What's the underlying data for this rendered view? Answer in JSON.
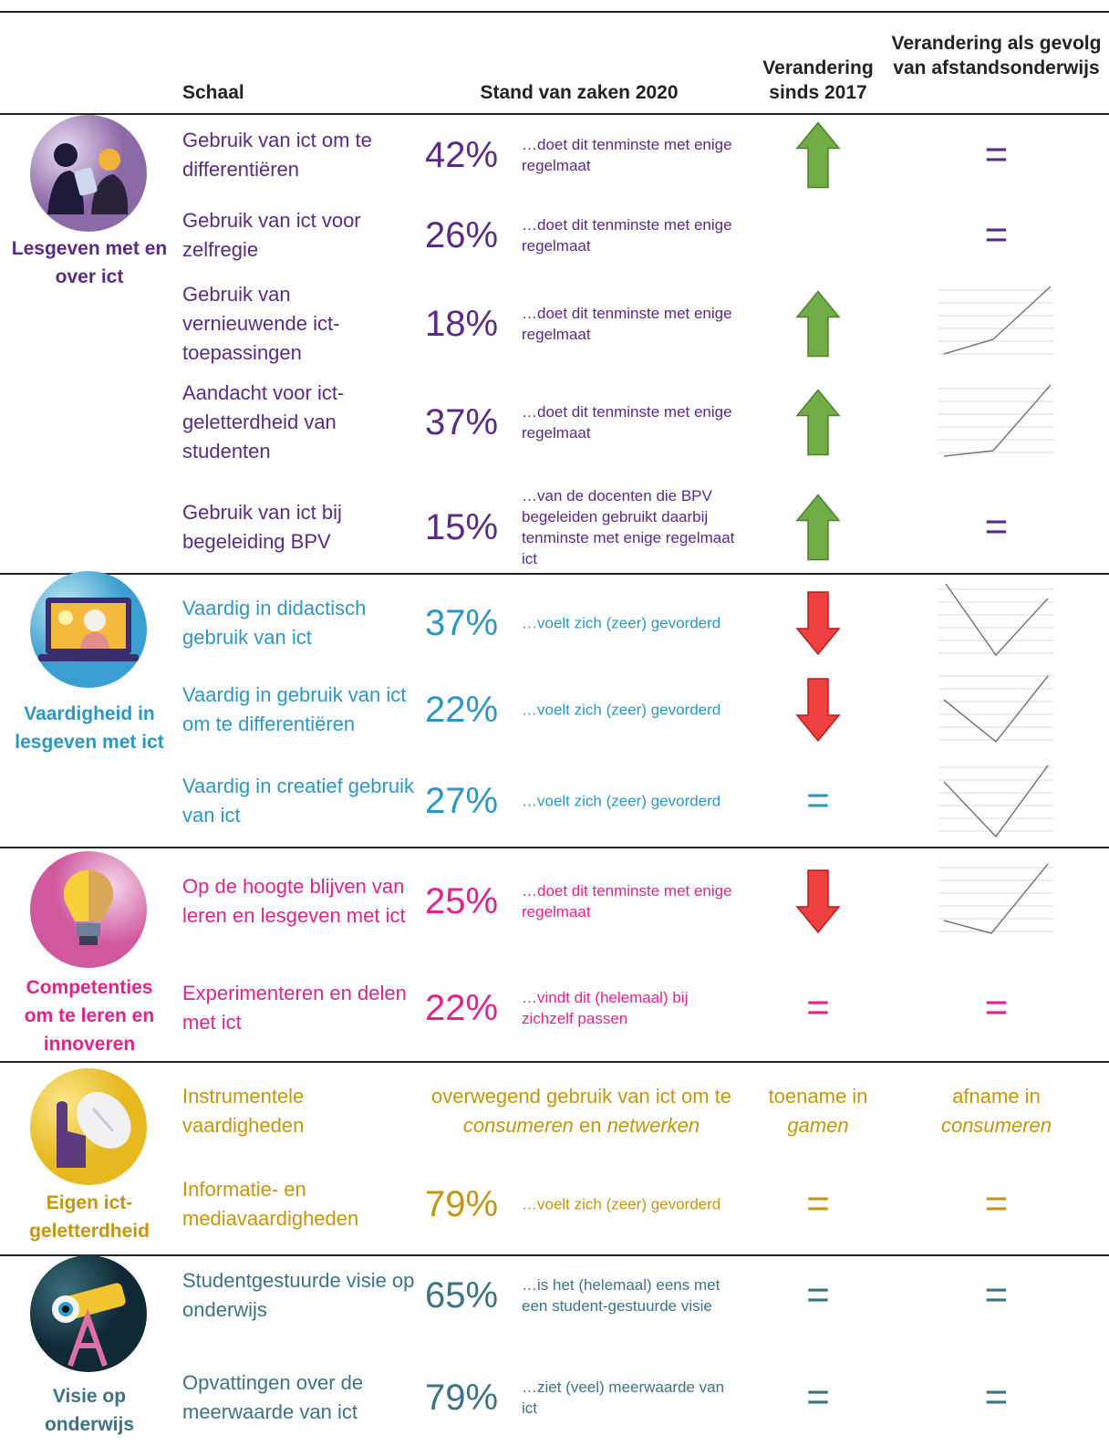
{
  "header": {
    "scale": "Schaal",
    "status": "Stand van zaken 2020",
    "change_2017": "Verandering sinds 2017",
    "change_remote": "Verandering als gevolg van afstandsonderwijs"
  },
  "groups": [
    {
      "name": "Lesgeven met en over ict",
      "rows": [
        {
          "label": "Gebruik van ict om te differentiëren",
          "percent": "42%",
          "description": "…doet dit tenminste met enige regelmaat",
          "change_remote": "="
        },
        {
          "label": "Gebruik van ict voor zelfregie",
          "percent": "26%",
          "description": "…doet dit tenminste met enige regelmaat",
          "change_remote": "="
        },
        {
          "label": "Gebruik van vernieuwende ict-toepassingen",
          "percent": "18%",
          "description": "…doet dit tenminste met enige regelmaat"
        },
        {
          "label": "Aandacht voor ict-geletterdheid van studenten",
          "percent": "37%",
          "description": "…doet dit tenminste met enige regelmaat"
        },
        {
          "label": "Gebruik van ict bij begeleiding BPV",
          "percent": "15%",
          "description": "…van de docenten die BPV begeleiden gebruikt daarbij tenminste met enige regelmaat ict",
          "change_remote": "="
        }
      ]
    },
    {
      "name": "Vaardigheid in lesgeven met ict",
      "rows": [
        {
          "label": "Vaardig in didactisch gebruik van ict",
          "percent": "37%",
          "description": "…voelt zich (zeer) gevorderd"
        },
        {
          "label": "Vaardig in gebruik van ict om te differentiëren",
          "percent": "22%",
          "description": "…voelt zich (zeer) gevorderd"
        },
        {
          "label": "Vaardig in creatief gebruik van ict",
          "percent": "27%",
          "description": "…voelt zich (zeer) gevorderd",
          "change_2017": "="
        }
      ]
    },
    {
      "name": "Competenties om te leren en innoveren",
      "rows": [
        {
          "label": "Op de hoogte blijven van leren en lesgeven met ict",
          "percent": "25%",
          "description": "…doet dit tenminste met enige regelmaat"
        },
        {
          "label": "Experimenteren en delen met ict",
          "percent": "22%",
          "description": "…vindt dit (helemaal) bij zichzelf passen",
          "change_2017": "=",
          "change_remote": "="
        }
      ]
    },
    {
      "name": "Eigen ict-geletterdheid",
      "rows": [
        {
          "label": "Instrumentele vaardigheden",
          "status_parts": [
            "overwegend gebruik van ict om te ",
            "consumeren",
            " en ",
            "netwerken"
          ],
          "change_2017_parts": [
            "toename in",
            "gamen"
          ],
          "change_remote_parts": [
            "afname in",
            "consumeren"
          ]
        },
        {
          "label": "Informatie- en mediavaardigheden",
          "percent": "79%",
          "description": "…voelt zich (zeer) gevorderd",
          "change_2017": "=",
          "change_remote": "="
        }
      ]
    },
    {
      "name": "Visie op onderwijs",
      "rows": [
        {
          "label": "Studentgestuurde visie op onderwijs",
          "percent": "65%",
          "description": "…is het (helemaal) eens met een student-gestuurde visie",
          "change_2017": "=",
          "change_remote": "="
        },
        {
          "label": "Opvattingen over de meerwaarde van ict",
          "percent": "79%",
          "description": "…ziet (veel) meerwaarde van ict",
          "change_2017": "=",
          "change_remote": "="
        }
      ]
    }
  ]
}
